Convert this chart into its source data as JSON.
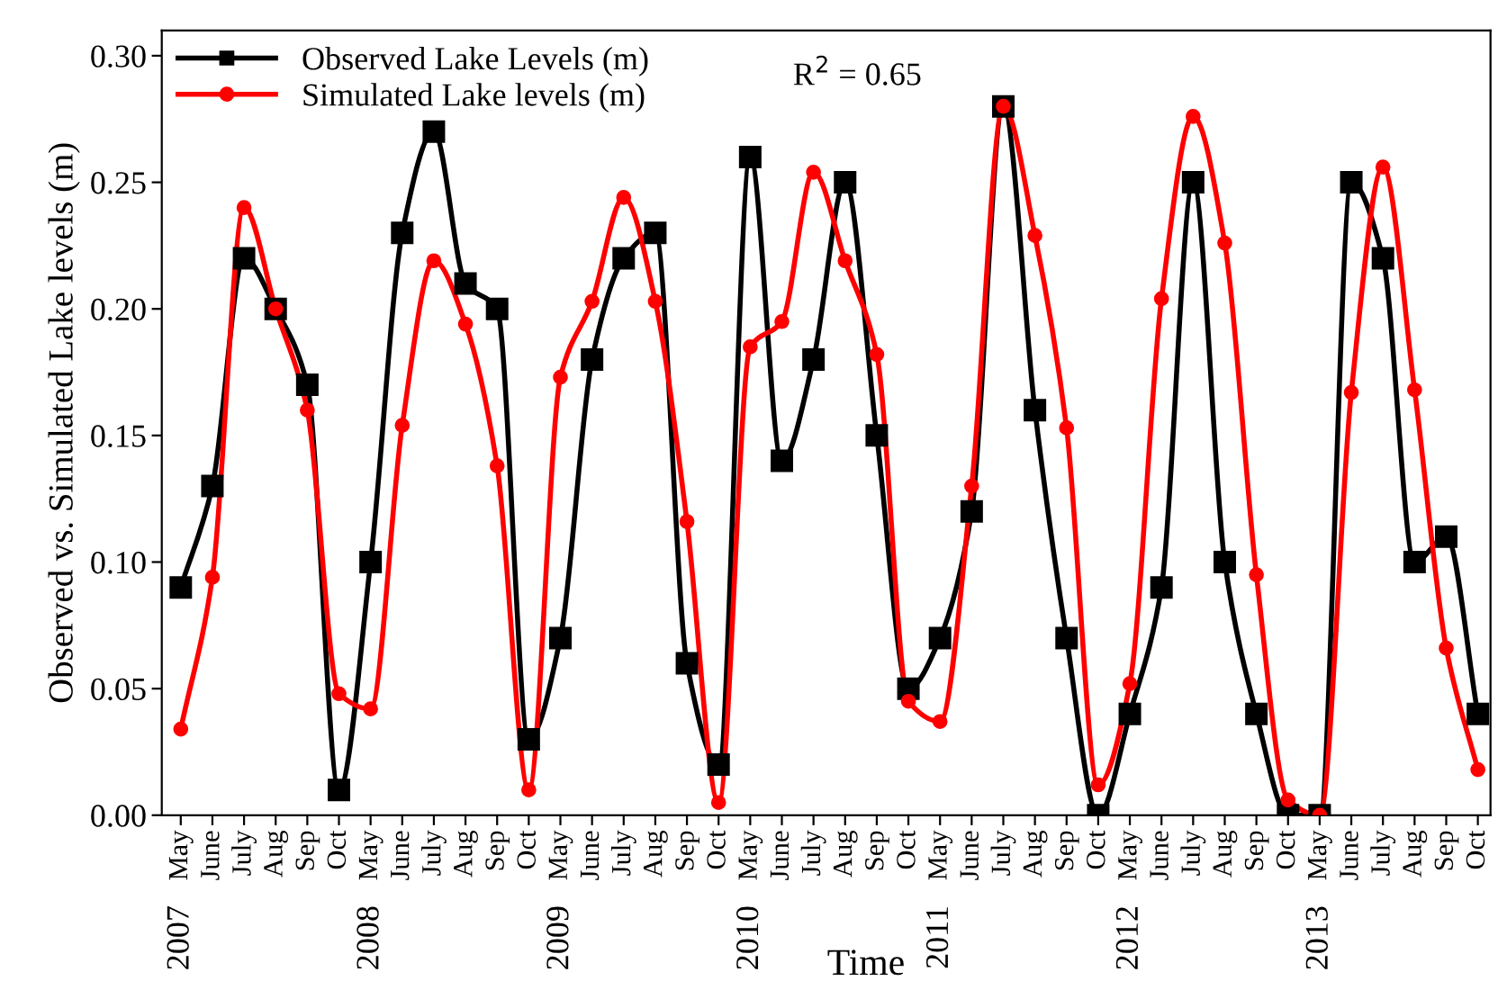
{
  "chart_data": {
    "type": "line",
    "xlabel": "Time",
    "ylabel": "Observed vs. Simulated Lake levels (m)",
    "categories": [
      "May",
      "June",
      "July",
      "Aug",
      "Sep",
      "Oct",
      "May",
      "June",
      "July",
      "Aug",
      "Sep",
      "Oct",
      "May",
      "June",
      "July",
      "Aug",
      "Sep",
      "Oct",
      "May",
      "June",
      "July",
      "Aug",
      "Sep",
      "Oct",
      "May",
      "June",
      "July",
      "Aug",
      "Sep",
      "Oct",
      "May",
      "June",
      "July",
      "Aug",
      "Sep",
      "Oct",
      "May",
      "June",
      "July",
      "Aug",
      "Sep",
      "Oct"
    ],
    "series": [
      {
        "name": "Observed Lake Levels (m)",
        "color": "#000000",
        "marker": "square",
        "values": [
          0.09,
          0.13,
          0.22,
          0.2,
          0.17,
          0.01,
          0.1,
          0.23,
          0.27,
          0.21,
          0.2,
          0.03,
          0.07,
          0.18,
          0.22,
          0.23,
          0.06,
          0.02,
          0.26,
          0.14,
          0.18,
          0.25,
          0.15,
          0.05,
          0.07,
          0.12,
          0.28,
          0.16,
          0.07,
          0.0,
          0.04,
          0.09,
          0.25,
          0.1,
          0.04,
          0.0,
          0.0,
          0.25,
          0.22,
          0.1,
          0.11,
          0.04
        ]
      },
      {
        "name": "Simulated Lake levels (m)",
        "color": "#ff0000",
        "marker": "circle",
        "values": [
          0.034,
          0.094,
          0.24,
          0.2,
          0.16,
          0.048,
          0.042,
          0.154,
          0.219,
          0.194,
          0.138,
          0.01,
          0.173,
          0.203,
          0.244,
          0.203,
          0.116,
          0.005,
          0.185,
          0.195,
          0.254,
          0.219,
          0.182,
          0.045,
          0.037,
          0.13,
          0.28,
          0.229,
          0.153,
          0.012,
          0.052,
          0.204,
          0.276,
          0.226,
          0.095,
          0.006,
          0.0,
          0.167,
          0.256,
          0.168,
          0.066,
          0.018
        ]
      }
    ],
    "annotations": [
      "R$^{2}$ = 0.65",
      "2007",
      "2008",
      "2009",
      "2010",
      "2011",
      "2012",
      "2013"
    ],
    "ylim": [
      0,
      0.31
    ],
    "yticks": [
      {
        "value": 0,
        "label": "0.00"
      },
      {
        "value": 0.05,
        "label": "0.05"
      },
      {
        "value": 0.1,
        "label": "0.10"
      },
      {
        "value": 0.15,
        "label": "0.15"
      },
      {
        "value": 0.2,
        "label": "0.20"
      },
      {
        "value": 0.25,
        "label": "0.25"
      },
      {
        "value": 0.3,
        "label": "0.30"
      }
    ],
    "legend": "top left",
    "grid": false,
    "line_style": "solid"
  }
}
